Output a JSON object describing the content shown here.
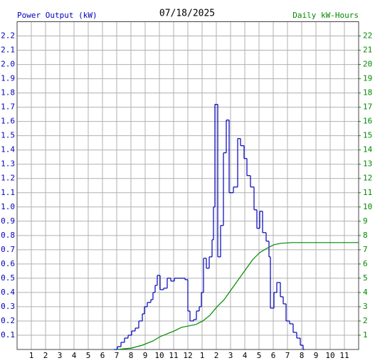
{
  "chart_data": {
    "type": "line",
    "title": "07/18/2025",
    "xlim": [
      0,
      24
    ],
    "xticks": [
      1,
      2,
      3,
      4,
      5,
      6,
      7,
      8,
      9,
      10,
      11,
      12,
      {
        "value": 13,
        "label": "1"
      },
      {
        "value": 14,
        "label": "2"
      },
      {
        "value": 15,
        "label": "3"
      },
      {
        "value": 16,
        "label": "4"
      },
      {
        "value": 17,
        "label": "5"
      },
      {
        "value": 18,
        "label": "6"
      },
      {
        "value": 19,
        "label": "7"
      },
      {
        "value": 20,
        "label": "8"
      },
      {
        "value": 21,
        "label": "9"
      },
      {
        "value": 22,
        "label": "10"
      },
      {
        "value": 23,
        "label": "11"
      }
    ],
    "ylim": [
      0,
      2.3
    ],
    "yticks": [
      0.1,
      0.2,
      0.3,
      0.4,
      0.5,
      0.6,
      0.7,
      0.8,
      0.9,
      {
        "value": 1,
        "label": "1.0"
      },
      1.1,
      1.2,
      1.3,
      1.4,
      1.5,
      1.6,
      1.7,
      1.8,
      1.9,
      {
        "value": 2,
        "label": "2.0"
      },
      2.1,
      2.2
    ],
    "y2lim": [
      0,
      23
    ],
    "y2ticks": [
      1,
      2,
      3,
      4,
      5,
      6,
      7,
      8,
      9,
      10,
      11,
      12,
      13,
      14,
      15,
      16,
      17,
      18,
      19,
      20,
      21,
      22
    ],
    "grid": true,
    "series": [
      {
        "name": "Power Output (kW)",
        "color": "#0000bb",
        "step": true,
        "x": [
          6.8,
          7.05,
          7.3,
          7.55,
          7.8,
          8.05,
          8.3,
          8.55,
          8.8,
          8.95,
          9.15,
          9.4,
          9.55,
          9.7,
          9.85,
          10.05,
          10.3,
          10.55,
          10.8,
          11.05,
          11.55,
          11.8,
          12.0,
          12.15,
          12.4,
          12.6,
          12.8,
          12.95,
          13.1,
          13.3,
          13.5,
          13.7,
          13.8,
          13.9,
          14.1,
          14.3,
          14.5,
          14.7,
          14.9,
          15.2,
          15.5,
          15.7,
          15.95,
          16.15,
          16.4,
          16.65,
          16.85,
          17.05,
          17.25,
          17.5,
          17.7,
          17.8,
          18.05,
          18.25,
          18.5,
          18.7,
          18.9,
          19.15,
          19.4,
          19.65,
          19.9,
          20.1
        ],
        "values": [
          0,
          0.02,
          0.05,
          0.08,
          0.1,
          0.13,
          0.15,
          0.2,
          0.25,
          0.3,
          0.33,
          0.35,
          0.4,
          0.45,
          0.52,
          0.42,
          0.43,
          0.5,
          0.48,
          0.5,
          0.5,
          0.49,
          0.27,
          0.2,
          0.21,
          0.27,
          0.3,
          0.4,
          0.64,
          0.57,
          0.65,
          0.77,
          1.0,
          1.72,
          0.65,
          0.87,
          1.38,
          1.61,
          1.1,
          1.14,
          1.48,
          1.43,
          1.34,
          1.22,
          1.14,
          0.98,
          0.85,
          0.97,
          0.82,
          0.76,
          0.65,
          0.29,
          0.4,
          0.47,
          0.37,
          0.32,
          0.2,
          0.18,
          0.12,
          0.08,
          0.03,
          0
        ]
      },
      {
        "name": "Daily kW-Hours",
        "color": "#008800",
        "step": false,
        "axis": "y2",
        "x": [
          7.05,
          8.05,
          8.8,
          9.55,
          10.05,
          10.55,
          11.05,
          11.55,
          12.05,
          12.55,
          13.05,
          13.55,
          14.05,
          14.55,
          15.05,
          15.55,
          16.05,
          16.55,
          17.05,
          17.55,
          18.05,
          18.55,
          19.3,
          24
        ],
        "values": [
          0,
          0.1,
          0.3,
          0.6,
          0.9,
          1.1,
          1.3,
          1.55,
          1.65,
          1.75,
          2.0,
          2.4,
          3.0,
          3.5,
          4.2,
          4.9,
          5.6,
          6.3,
          6.8,
          7.1,
          7.35,
          7.45,
          7.5,
          7.5
        ]
      }
    ]
  }
}
